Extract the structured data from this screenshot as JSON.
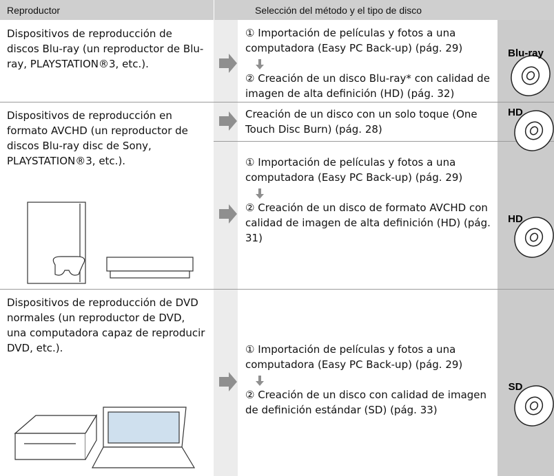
{
  "header": {
    "player": "Reproductor",
    "method": "Selección del método y el tipo de disco"
  },
  "rows": [
    {
      "player": "Dispositivos de reproducción de discos Blu-ray (un reproductor de Blu-ray, PLAYSTATION®3, etc.).",
      "options": [
        {
          "steps": [
            "① Importación de películas y fotos a una computadora (Easy PC Back-up) (pág. 29)",
            "② Creación de un disco Blu-ray* con calidad de imagen de alta definición (HD) (pág. 32)"
          ],
          "disc": "Blu-ray"
        }
      ]
    },
    {
      "player": "Dispositivos de reproducción en formato AVCHD (un reproductor de discos Blu-ray disc de Sony, PLAYSTATION®3, etc.).",
      "options": [
        {
          "steps": [
            "Creación de un disco con un solo toque (One Touch Disc Burn) (pág. 28)"
          ],
          "disc": "HD"
        },
        {
          "steps": [
            "① Importación de películas y fotos a una computadora (Easy PC Back-up) (pág. 29)",
            "② Creación de un disco de formato AVCHD con calidad de imagen de alta definición (HD) (pág. 31)"
          ],
          "disc": "HD"
        }
      ]
    },
    {
      "player": "Dispositivos de reproducción de DVD normales (un reproductor de DVD, una computadora capaz de reproducir DVD, etc.).",
      "options": [
        {
          "steps": [
            "① Importación de películas y fotos a una computadora (Easy PC Back-up) (pág. 29)",
            "② Creación de un disco con calidad de imagen de definición estándar (SD) (pág. 33)"
          ],
          "disc": "SD"
        }
      ]
    }
  ]
}
